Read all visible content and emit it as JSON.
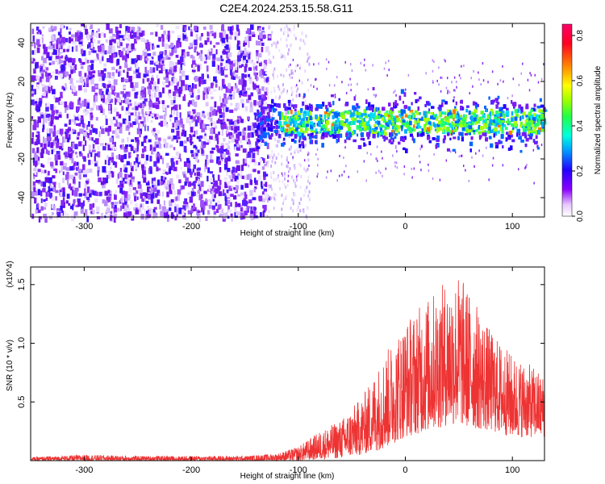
{
  "title": "C2E4.2024.253.15.58.G11",
  "colors": {
    "snr_line": "#ee3333",
    "spectrogram_low": "#7b1cf0",
    "spectrogram_high": "#ff0055"
  },
  "chart_data": [
    {
      "type": "heatmap",
      "xlabel": "Height of straight line (km)",
      "ylabel": "Frequency (Hz)",
      "xlim": [
        -350,
        130
      ],
      "ylim": [
        -50,
        50
      ],
      "x_ticks": [
        -300,
        -200,
        -100,
        0,
        100
      ],
      "y_ticks": [
        -40,
        -20,
        0,
        20,
        40
      ],
      "colorbar": {
        "label": "Normalized spectral amplitude",
        "range": [
          0.0,
          0.85
        ],
        "ticks": [
          0.0,
          0.2,
          0.4,
          0.6,
          0.8
        ],
        "colormap": "rainbow (purple-blue-cyan-green-yellow-red)"
      },
      "regions": [
        {
          "x_range": [
            -350,
            -130
          ],
          "freq_range": [
            -50,
            50
          ],
          "amplitude": 0.05
        },
        {
          "x_range": [
            -130,
            -90
          ],
          "freq_range": [
            -50,
            50
          ],
          "amplitude": 0.02
        },
        {
          "x_range": [
            -130,
            130
          ],
          "freq_range": [
            -10,
            10
          ],
          "amplitude": 0.35
        }
      ],
      "grid": false
    },
    {
      "type": "line",
      "xlabel": "Height of straight line (km)",
      "ylabel": "SNR (10 * v/v)",
      "y_multiplier": "(x10^4)",
      "xlim": [
        -350,
        130
      ],
      "ylim": [
        0,
        1.65
      ],
      "x_ticks": [
        -300,
        -200,
        -100,
        0,
        100
      ],
      "y_ticks": [
        0.5,
        1.0,
        1.5
      ],
      "series": [
        {
          "x": [
            -350,
            -300,
            -250,
            -200,
            -150,
            -120,
            -100,
            -80,
            -60,
            -40,
            -20,
            0,
            20,
            40,
            50,
            60,
            80,
            100,
            120,
            130
          ],
          "y_max": [
            0.03,
            0.05,
            0.04,
            0.04,
            0.04,
            0.06,
            0.12,
            0.25,
            0.35,
            0.55,
            0.9,
            1.2,
            1.38,
            1.55,
            1.6,
            1.45,
            1.1,
            0.9,
            0.8,
            0.72
          ],
          "y_min": [
            0.0,
            0.0,
            0.0,
            0.0,
            0.0,
            0.0,
            0.0,
            0.01,
            0.02,
            0.05,
            0.1,
            0.2,
            0.25,
            0.3,
            0.3,
            0.28,
            0.25,
            0.2,
            0.2,
            0.2
          ]
        }
      ],
      "grid": false
    }
  ]
}
